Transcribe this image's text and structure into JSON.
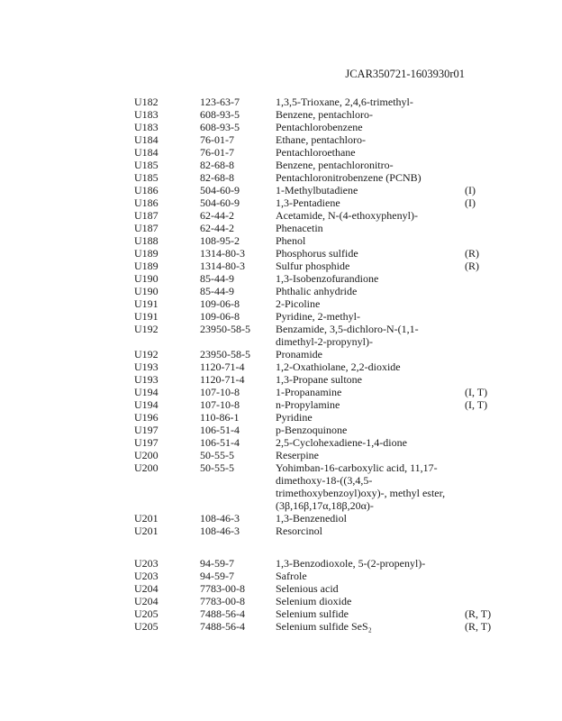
{
  "header": {
    "doc_id": "JCAR350721-1603930r01"
  },
  "rows": [
    {
      "code": "U182",
      "cas": "123-63-7",
      "name": [
        "1,3,5-Trioxane, 2,4,6-trimethyl-"
      ],
      "flag": ""
    },
    {
      "code": "U183",
      "cas": "608-93-5",
      "name": [
        "Benzene, pentachloro-"
      ],
      "flag": ""
    },
    {
      "code": "U183",
      "cas": "608-93-5",
      "name": [
        "Pentachlorobenzene"
      ],
      "flag": ""
    },
    {
      "code": "U184",
      "cas": "76-01-7",
      "name": [
        "Ethane, pentachloro-"
      ],
      "flag": ""
    },
    {
      "code": "U184",
      "cas": "76-01-7",
      "name": [
        "Pentachloroethane"
      ],
      "flag": ""
    },
    {
      "code": "U185",
      "cas": "82-68-8",
      "name": [
        "Benzene, pentachloronitro-"
      ],
      "flag": ""
    },
    {
      "code": "U185",
      "cas": "82-68-8",
      "name": [
        "Pentachloronitrobenzene (PCNB)"
      ],
      "flag": ""
    },
    {
      "code": "U186",
      "cas": "504-60-9",
      "name": [
        "1-Methylbutadiene"
      ],
      "flag": "(I)"
    },
    {
      "code": "U186",
      "cas": "504-60-9",
      "name": [
        "1,3-Pentadiene"
      ],
      "flag": "(I)"
    },
    {
      "code": "U187",
      "cas": "62-44-2",
      "name": [
        "Acetamide, N-(4-ethoxyphenyl)-"
      ],
      "flag": ""
    },
    {
      "code": "U187",
      "cas": "62-44-2",
      "name": [
        "Phenacetin"
      ],
      "flag": ""
    },
    {
      "code": "U188",
      "cas": "108-95-2",
      "name": [
        "Phenol"
      ],
      "flag": ""
    },
    {
      "code": "U189",
      "cas": "1314-80-3",
      "name": [
        "Phosphorus sulfide"
      ],
      "flag": "(R)"
    },
    {
      "code": "U189",
      "cas": "1314-80-3",
      "name": [
        "Sulfur phosphide"
      ],
      "flag": "(R)"
    },
    {
      "code": "U190",
      "cas": "85-44-9",
      "name": [
        "1,3-Isobenzofurandione"
      ],
      "flag": ""
    },
    {
      "code": "U190",
      "cas": "85-44-9",
      "name": [
        "Phthalic anhydride"
      ],
      "flag": ""
    },
    {
      "code": "U191",
      "cas": "109-06-8",
      "name": [
        "2-Picoline"
      ],
      "flag": ""
    },
    {
      "code": "U191",
      "cas": "109-06-8",
      "name": [
        "Pyridine, 2-methyl-"
      ],
      "flag": ""
    },
    {
      "code": "U192",
      "cas": "23950-58-5",
      "name": [
        "Benzamide, 3,5-dichloro-N-(1,1-",
        "dimethyl-2-propynyl)-"
      ],
      "flag": ""
    },
    {
      "code": "U192",
      "cas": "23950-58-5",
      "name": [
        "Pronamide"
      ],
      "flag": ""
    },
    {
      "code": "U193",
      "cas": "1120-71-4",
      "name": [
        "1,2-Oxathiolane, 2,2-dioxide"
      ],
      "flag": ""
    },
    {
      "code": "U193",
      "cas": "1120-71-4",
      "name": [
        "1,3-Propane sultone"
      ],
      "flag": ""
    },
    {
      "code": "U194",
      "cas": "107-10-8",
      "name": [
        "1-Propanamine"
      ],
      "flag": "(I, T)"
    },
    {
      "code": "U194",
      "cas": "107-10-8",
      "name": [
        "n-Propylamine"
      ],
      "flag": "(I, T)"
    },
    {
      "code": "U196",
      "cas": "110-86-1",
      "name": [
        "Pyridine"
      ],
      "flag": ""
    },
    {
      "code": "U197",
      "cas": "106-51-4",
      "name": [
        "p-Benzoquinone"
      ],
      "flag": ""
    },
    {
      "code": "U197",
      "cas": "106-51-4",
      "name": [
        "2,5-Cyclohexadiene-1,4-dione"
      ],
      "flag": ""
    },
    {
      "code": "U200",
      "cas": "50-55-5",
      "name": [
        "Reserpine"
      ],
      "flag": ""
    },
    {
      "code": "U200",
      "cas": "50-55-5",
      "name": [
        "Yohimban-16-carboxylic acid, 11,17-",
        "dimethoxy-18-((3,4,5-",
        "trimethoxybenzoyl)oxy)-, methyl ester,",
        "(3β,16β,17α,18β,20α)-"
      ],
      "flag": ""
    },
    {
      "code": "U201",
      "cas": "108-46-3",
      "name": [
        "1,3-Benzenediol"
      ],
      "flag": ""
    },
    {
      "code": "U201",
      "cas": "108-46-3",
      "name": [
        "Resorcinol"
      ],
      "flag": ""
    },
    {
      "code": "U203",
      "cas": "94-59-7",
      "name": [
        "1,3-Benzodioxole, 5-(2-propenyl)-"
      ],
      "flag": "",
      "gap_before": true
    },
    {
      "code": "U203",
      "cas": "94-59-7",
      "name": [
        "Safrole"
      ],
      "flag": ""
    },
    {
      "code": "U204",
      "cas": "7783-00-8",
      "name": [
        "Selenious acid"
      ],
      "flag": ""
    },
    {
      "code": "U204",
      "cas": "7783-00-8",
      "name": [
        "Selenium dioxide"
      ],
      "flag": ""
    },
    {
      "code": "U205",
      "cas": "7488-56-4",
      "name": [
        "Selenium sulfide"
      ],
      "flag": "(R, T)"
    },
    {
      "code": "U205",
      "cas": "7488-56-4",
      "name": [
        "Selenium sulfide SeS₂"
      ],
      "flag": "(R, T)"
    }
  ]
}
